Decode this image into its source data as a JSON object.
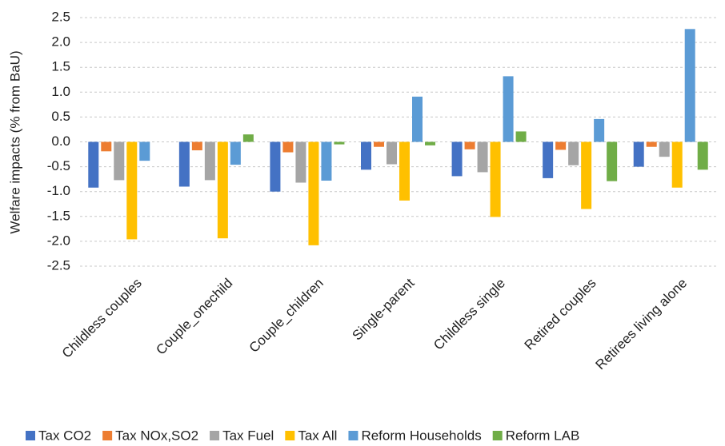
{
  "chart_data": {
    "type": "bar",
    "y_label": "Welfare impacts (% from BaU)",
    "categories": [
      "Childless couples",
      "Couple_onechild",
      "Couple_children",
      "Single-parent",
      "Childless single",
      "Retired couples",
      "Retirees living alone"
    ],
    "series": [
      {
        "name": "Tax CO2",
        "color": "#4472c4",
        "values": [
          -0.92,
          -0.9,
          -1.0,
          -0.56,
          -0.69,
          -0.73,
          -0.5
        ]
      },
      {
        "name": "Tax NOx,SO2",
        "color": "#ed7d31",
        "values": [
          -0.19,
          -0.17,
          -0.21,
          -0.1,
          -0.15,
          -0.16,
          -0.1
        ]
      },
      {
        "name": "Tax Fuel",
        "color": "#a5a5a5",
        "values": [
          -0.77,
          -0.77,
          -0.82,
          -0.45,
          -0.61,
          -0.47,
          -0.3
        ]
      },
      {
        "name": "Tax All",
        "color": "#ffc000",
        "values": [
          -1.96,
          -1.94,
          -2.08,
          -1.18,
          -1.51,
          -1.35,
          -0.92
        ]
      },
      {
        "name": "Reform Households",
        "color": "#5b9bd5",
        "values": [
          -0.38,
          -0.46,
          -0.78,
          0.91,
          1.32,
          0.46,
          2.27
        ]
      },
      {
        "name": "Reform LAB",
        "color": "#70ad47",
        "values": [
          0,
          0.15,
          -0.05,
          -0.07,
          0.21,
          -0.79,
          -0.56
        ]
      }
    ],
    "ylim": [
      -2.5,
      2.5
    ],
    "yticks": [
      2.5,
      {
        "value": 2,
        "label": "2.0"
      },
      1.5,
      {
        "value": 1,
        "label": "1.0"
      },
      0.5,
      {
        "value": 0,
        "label": "0.0"
      },
      -0.5,
      {
        "value": -1,
        "label": "-1.0"
      },
      -1.5,
      {
        "value": -2,
        "label": "-2.0"
      },
      -2.5
    ],
    "grid": true
  }
}
